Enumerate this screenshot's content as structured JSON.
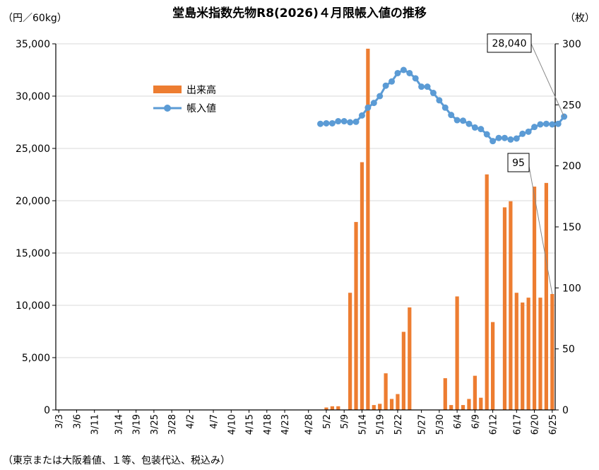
{
  "chart_data": {
    "type": "bar",
    "title": "堂島米指数先物R8(2026)４月限帳入値の推移",
    "left_unit": "（円／60kg）",
    "right_unit": "（枚）",
    "footnote": "（東京または大阪着値、１等、包装代込、税込み）",
    "left_ylim": [
      0,
      35000
    ],
    "left_ticks": [
      "0",
      "5,000",
      "10,000",
      "15,000",
      "20,000",
      "25,000",
      "30,000",
      "35,000"
    ],
    "right_ylim": [
      0,
      300
    ],
    "right_ticks": [
      "0",
      "50",
      "100",
      "150",
      "200",
      "250",
      "300"
    ],
    "grid": true,
    "legend_position": "top-left",
    "x_tick_labels": [
      "3/3",
      "3/6",
      "3/11",
      "3/14",
      "3/19",
      "3/25",
      "3/28",
      "4/2",
      "4/7",
      "4/10",
      "4/15",
      "4/18",
      "4/23",
      "4/28",
      "5/2",
      "5/9",
      "5/14",
      "5/19",
      "5/22",
      "5/27",
      "5/30",
      "6/4",
      "6/9",
      "6/12",
      "6/17",
      "6/20",
      "6/25"
    ],
    "series": [
      {
        "name": "出来高",
        "axis": "right",
        "color": "#ED7D31",
        "kind": "bar",
        "values": [
          0,
          0,
          0,
          0,
          0,
          0,
          0,
          0,
          0,
          0,
          0,
          0,
          0,
          0,
          0,
          0,
          0,
          0,
          0,
          0,
          0,
          0,
          0,
          0,
          0,
          0,
          0,
          0,
          0,
          0,
          0,
          0,
          0,
          0,
          0,
          0,
          0,
          0,
          0,
          0,
          0,
          0,
          0,
          0,
          0,
          2,
          3,
          3,
          0,
          96,
          154,
          203,
          296,
          4,
          5,
          30,
          9,
          13,
          64,
          84,
          0,
          0,
          0,
          0,
          0,
          26,
          4,
          93,
          4,
          9,
          28,
          10,
          193,
          72,
          0,
          166,
          171,
          96,
          88,
          92,
          183,
          92,
          186,
          95
        ]
      },
      {
        "name": "帳入値",
        "axis": "left",
        "color": "#5B9BD5",
        "kind": "line",
        "start_index": 44,
        "values": [
          27350,
          27400,
          27400,
          27600,
          27600,
          27500,
          27550,
          28150,
          28900,
          29350,
          30000,
          31000,
          31400,
          32200,
          32500,
          32200,
          31700,
          30900,
          30900,
          30300,
          29600,
          28900,
          28200,
          27700,
          27650,
          27350,
          27000,
          26850,
          26350,
          25700,
          26000,
          26000,
          25850,
          25950,
          26400,
          26600,
          27050,
          27300,
          27350,
          27300,
          27350,
          28040
        ]
      }
    ],
    "annotations": [
      {
        "label": "28,040",
        "series": "帳入値"
      },
      {
        "label": "95",
        "series": "出来高"
      }
    ]
  }
}
